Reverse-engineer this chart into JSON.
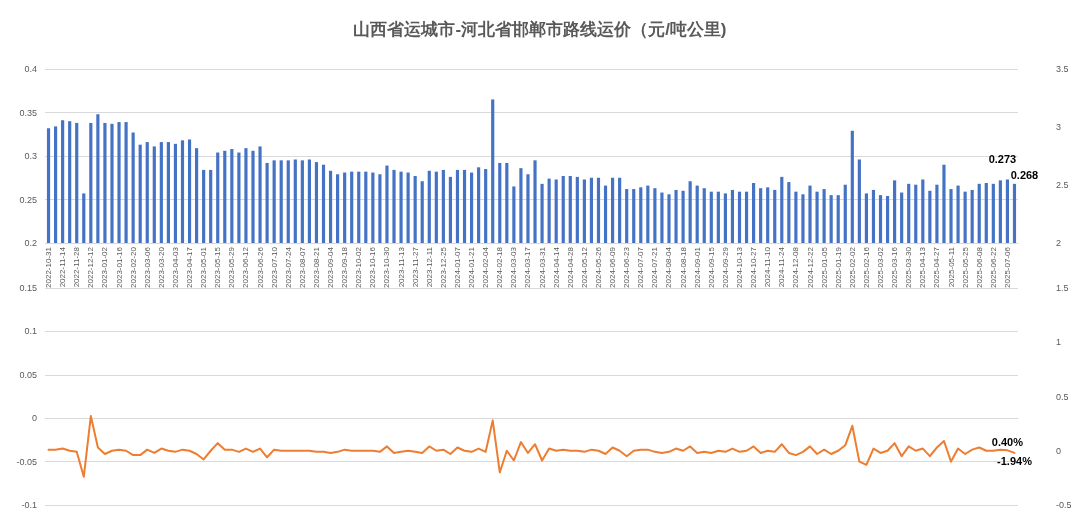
{
  "chart_data": [
    {
      "type": "bar",
      "title": "山西省运城市-河北省邯郸市路线运价（元/吨公里)",
      "categories": [
        "2022-10-31",
        null,
        "2022-11-14",
        null,
        "2022-11-28",
        null,
        "2022-12-12",
        null,
        "2023-01-02",
        null,
        "2023-01-16",
        null,
        "2023-02-20",
        null,
        "2023-03-06",
        null,
        "2023-03-20",
        null,
        "2023-04-03",
        null,
        "2023-04-17",
        null,
        "2023-05-01",
        null,
        "2023-05-15",
        null,
        "2023-05-29",
        null,
        "2023-06-12",
        null,
        "2023-06-26",
        null,
        "2023-07-10",
        null,
        "2023-07-24",
        null,
        "2023-08-07",
        null,
        "2023-08-21",
        null,
        "2023-09-04",
        null,
        "2023-09-18",
        null,
        "2023-10-02",
        null,
        "2023-10-16",
        null,
        "2023-10-30",
        null,
        "2023-11-13",
        null,
        "2023-11-27",
        null,
        "2023-12-11",
        null,
        "2023-12-25",
        null,
        "2024-01-07",
        null,
        "2024-01-21",
        null,
        "2024-02-04",
        null,
        "2024-02-18",
        null,
        "2024-03-03",
        null,
        "2024-03-17",
        null,
        "2024-03-31",
        null,
        "2024-04-14",
        null,
        "2024-04-28",
        null,
        "2024-05-12",
        null,
        "2024-05-26",
        null,
        "2024-06-09",
        null,
        "2024-06-23",
        null,
        "2024-07-07",
        null,
        "2024-07-21",
        null,
        "2024-08-04",
        null,
        "2024-08-18",
        null,
        "2024-09-01",
        null,
        "2024-09-15",
        null,
        "2024-09-29",
        null,
        "2024-10-13",
        null,
        "2024-10-27",
        null,
        "2024-11-10",
        null,
        "2024-11-24",
        null,
        "2024-12-08",
        null,
        "2024-12-22",
        null,
        "2025-01-05",
        null,
        "2025-01-19",
        null,
        "2025-02-02",
        null,
        "2025-02-16",
        null,
        "2025-03-02",
        null,
        "2025-03-16",
        null,
        "2025-03-30",
        null,
        "2025-04-13",
        null,
        "2025-04-27",
        null,
        "2025-05-11",
        null,
        "2025-05-25",
        null,
        "2025-06-08",
        null,
        "2025-06-22",
        null,
        "2025-07-06",
        null
      ],
      "series": [
        {
          "color": "#4472c4",
          "values": [
            0.332,
            0.334,
            0.341,
            0.34,
            0.338,
            0.257,
            0.338,
            0.348,
            0.338,
            0.337,
            0.339,
            0.339,
            0.327,
            0.313,
            0.316,
            0.311,
            0.316,
            0.316,
            0.314,
            0.318,
            0.319,
            0.309,
            0.284,
            0.284,
            0.304,
            0.306,
            0.308,
            0.304,
            0.309,
            0.306,
            0.311,
            0.292,
            0.295,
            0.295,
            0.295,
            0.296,
            0.295,
            0.296,
            0.293,
            0.29,
            0.283,
            0.279,
            0.281,
            0.282,
            0.282,
            0.282,
            0.281,
            0.279,
            0.289,
            0.284,
            0.282,
            0.281,
            0.277,
            0.271,
            0.283,
            0.282,
            0.284,
            0.276,
            0.284,
            0.284,
            0.281,
            0.287,
            0.285,
            0.365,
            0.292,
            0.292,
            0.265,
            0.286,
            0.279,
            0.295,
            0.268,
            0.274,
            0.273,
            0.277,
            0.277,
            0.276,
            0.273,
            0.275,
            0.275,
            0.266,
            0.275,
            0.275,
            0.262,
            0.262,
            0.264,
            0.266,
            0.263,
            0.258,
            0.256,
            0.261,
            0.26,
            0.271,
            0.266,
            0.263,
            0.259,
            0.259,
            0.257,
            0.261,
            0.259,
            0.259,
            0.269,
            0.263,
            0.264,
            0.261,
            0.276,
            0.27,
            0.259,
            0.256,
            0.266,
            0.259,
            0.262,
            0.255,
            0.255,
            0.267,
            0.329,
            0.296,
            0.257,
            0.261,
            0.255,
            0.254,
            0.272,
            0.258,
            0.268,
            0.267,
            0.273,
            0.26,
            0.267,
            0.29,
            0.262,
            0.266,
            0.259,
            0.261,
            0.268,
            0.269,
            0.268,
            0.272,
            0.273,
            0.268
          ],
          "value_labels": [
            null,
            null,
            null,
            null,
            null,
            null,
            null,
            null,
            null,
            null,
            null,
            null,
            null,
            null,
            null,
            null,
            null,
            null,
            null,
            null,
            null,
            null,
            null,
            null,
            null,
            null,
            null,
            null,
            null,
            null,
            null,
            null,
            null,
            null,
            null,
            null,
            null,
            null,
            null,
            null,
            null,
            null,
            null,
            null,
            null,
            null,
            null,
            null,
            null,
            null,
            null,
            null,
            null,
            null,
            null,
            null,
            null,
            null,
            null,
            null,
            null,
            null,
            null,
            null,
            null,
            null,
            null,
            null,
            null,
            null,
            null,
            null,
            null,
            null,
            null,
            null,
            null,
            null,
            null,
            null,
            null,
            null,
            null,
            null,
            null,
            null,
            null,
            null,
            null,
            null,
            null,
            null,
            null,
            null,
            null,
            null,
            null,
            null,
            null,
            null,
            null,
            null,
            null,
            null,
            null,
            null,
            null,
            null,
            null,
            null,
            null,
            null,
            null,
            null,
            null,
            null,
            null,
            null,
            null,
            null,
            null,
            null,
            null,
            null,
            null,
            null,
            null,
            null,
            null,
            null,
            null,
            null,
            null,
            null,
            null,
            null,
            "0.273",
            "0.268"
          ]
        }
      ],
      "ylim": [
        0.2,
        0.4
      ],
      "yticks": [
        0.2,
        0.25,
        0.3,
        0.35,
        0.4
      ],
      "y2lim": [
        2,
        3.5
      ],
      "y2ticks": [
        2,
        2.5,
        3,
        3.5
      ],
      "grid": "y"
    },
    {
      "type": "line",
      "categories": [
        "2022-10-31",
        null,
        "2022-11-14",
        null,
        "2022-11-28",
        null,
        "2022-12-12",
        null,
        "2023-01-02",
        null,
        "2023-01-16",
        null,
        "2023-02-20",
        null,
        "2023-03-06",
        null,
        "2023-03-20",
        null,
        "2023-04-03",
        null,
        "2023-04-17",
        null,
        "2023-05-01",
        null,
        "2023-05-15",
        null,
        "2023-05-29",
        null,
        "2023-06-12",
        null,
        "2023-06-26",
        null,
        "2023-07-10",
        null,
        "2023-07-24",
        null,
        "2023-08-07",
        null,
        "2023-08-21",
        null,
        "2023-09-04",
        null,
        "2023-09-18",
        null,
        "2023-10-02",
        null,
        "2023-10-16",
        null,
        "2023-10-30",
        null,
        "2023-11-13",
        null,
        "2023-11-27",
        null,
        "2023-12-11",
        null,
        "2023-12-25",
        null,
        "2024-01-07",
        null,
        "2024-01-21",
        null,
        "2024-02-04",
        null,
        "2024-02-18",
        null,
        "2024-03-03",
        null,
        "2024-03-17",
        null,
        "2024-03-31",
        null,
        "2024-04-14",
        null,
        "2024-04-28",
        null,
        "2024-05-12",
        null,
        "2024-05-26",
        null,
        "2024-06-09",
        null,
        "2024-06-23",
        null,
        "2024-07-07",
        null,
        "2024-07-21",
        null,
        "2024-08-04",
        null,
        "2024-08-18",
        null,
        "2024-09-01",
        null,
        "2024-09-15",
        null,
        "2024-09-29",
        null,
        "2024-10-13",
        null,
        "2024-10-27",
        null,
        "2024-11-10",
        null,
        "2024-11-24",
        null,
        "2024-12-08",
        null,
        "2024-12-22",
        null,
        "2025-01-05",
        null,
        "2025-01-19",
        null,
        "2025-02-02",
        null,
        "2025-02-16",
        null,
        "2025-03-02",
        null,
        "2025-03-16",
        null,
        "2025-03-30",
        null,
        "2025-04-13",
        null,
        "2025-04-27",
        null,
        "2025-05-11",
        null,
        "2025-05-25",
        null,
        "2025-06-08",
        null,
        "2025-06-22",
        null,
        "2025-07-06",
        null
      ],
      "series": [
        {
          "color": "#ed7d31",
          "axis": "y2",
          "values": [
            0.01,
            0.01,
            0.02,
            0.0,
            -0.01,
            -0.24,
            0.32,
            0.03,
            -0.03,
            0.0,
            0.01,
            0.0,
            -0.04,
            -0.04,
            0.01,
            -0.02,
            0.02,
            0.0,
            -0.01,
            0.01,
            0.0,
            -0.03,
            -0.08,
            0.0,
            0.07,
            0.01,
            0.01,
            -0.01,
            0.02,
            -0.01,
            0.02,
            -0.06,
            0.01,
            0.0,
            0.0,
            0.0,
            0.0,
            0.0,
            -0.01,
            -0.01,
            -0.02,
            -0.01,
            0.01,
            0.0,
            0.0,
            0.0,
            0.0,
            -0.01,
            0.04,
            -0.02,
            -0.01,
            0.0,
            -0.01,
            -0.02,
            0.04,
            0.0,
            0.01,
            -0.03,
            0.03,
            0.0,
            -0.01,
            0.02,
            -0.01,
            0.28,
            -0.2,
            0.0,
            -0.09,
            0.08,
            -0.02,
            0.06,
            -0.09,
            0.02,
            0.0,
            0.01,
            0.0,
            0.0,
            -0.01,
            0.01,
            0.0,
            -0.03,
            0.03,
            0.0,
            -0.05,
            0.0,
            0.01,
            0.01,
            -0.01,
            -0.02,
            -0.01,
            0.02,
            0.0,
            0.04,
            -0.02,
            -0.01,
            -0.02,
            0.0,
            -0.01,
            0.02,
            -0.01,
            0.0,
            0.04,
            -0.02,
            0.0,
            -0.01,
            0.06,
            -0.02,
            -0.04,
            -0.01,
            0.04,
            -0.03,
            0.01,
            -0.03,
            0.0,
            0.05,
            0.23,
            -0.1,
            -0.13,
            0.02,
            -0.02,
            0.0,
            0.07,
            -0.05,
            0.04,
            0.0,
            0.02,
            -0.05,
            0.03,
            0.09,
            -0.1,
            0.02,
            -0.03,
            0.01,
            0.03,
            0.0,
            0.0,
            0.01,
            0.004,
            -0.0194
          ],
          "value_labels": [
            null,
            null,
            null,
            null,
            null,
            null,
            null,
            null,
            null,
            null,
            null,
            null,
            null,
            null,
            null,
            null,
            null,
            null,
            null,
            null,
            null,
            null,
            null,
            null,
            null,
            null,
            null,
            null,
            null,
            null,
            null,
            null,
            null,
            null,
            null,
            null,
            null,
            null,
            null,
            null,
            null,
            null,
            null,
            null,
            null,
            null,
            null,
            null,
            null,
            null,
            null,
            null,
            null,
            null,
            null,
            null,
            null,
            null,
            null,
            null,
            null,
            null,
            null,
            null,
            null,
            null,
            null,
            null,
            null,
            null,
            null,
            null,
            null,
            null,
            null,
            null,
            null,
            null,
            null,
            null,
            null,
            null,
            null,
            null,
            null,
            null,
            null,
            null,
            null,
            null,
            null,
            null,
            null,
            null,
            null,
            null,
            null,
            null,
            null,
            null,
            null,
            null,
            null,
            null,
            null,
            null,
            null,
            null,
            null,
            null,
            null,
            null,
            null,
            null,
            null,
            null,
            null,
            null,
            null,
            null,
            null,
            null,
            null,
            null,
            null,
            null,
            null,
            null,
            null,
            null,
            null,
            null,
            null,
            null,
            null,
            null,
            "0.40%",
            "-1.94%"
          ]
        }
      ],
      "ylim": [
        -0.1,
        0.15
      ],
      "yticks": [
        -0.1,
        -0.05,
        0,
        0.05,
        0.1,
        0.15
      ],
      "y2lim": [
        -0.5,
        1.5
      ],
      "y2ticks": [
        -0.5,
        0,
        0.5,
        1,
        1.5
      ],
      "grid": "y",
      "tick_labels": "y",
      "marker": "none"
    }
  ]
}
